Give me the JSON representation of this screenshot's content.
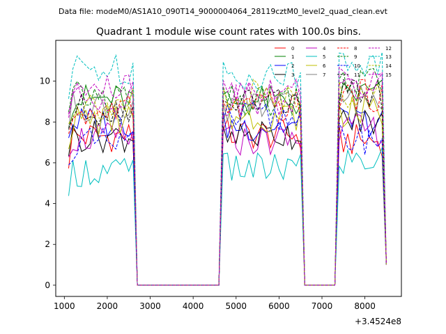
{
  "figure": {
    "suptitle": "Data file: modeM0/AS1A10_090T14_9000004064_28119cztM0_level2_quad_clean.evt"
  },
  "chart_data": {
    "type": "line",
    "title": "Quadrant 1 module wise count rates with 100.0s bins.",
    "xlabel": "",
    "ylabel": "",
    "x_offset_label": "+3.4524e8",
    "xlim": [
      800,
      8850
    ],
    "ylim": [
      -0.55,
      12.0
    ],
    "xticks": [
      1000,
      2000,
      3000,
      4000,
      5000,
      6000,
      7000,
      8000
    ],
    "xtick_labels": [
      "1000",
      "2000",
      "3000",
      "4000",
      "5000",
      "6000",
      "7000",
      "8000"
    ],
    "yticks": [
      0,
      2,
      4,
      6,
      8,
      10
    ],
    "ytick_labels": [
      "0",
      "2",
      "4",
      "6",
      "8",
      "10"
    ],
    "grid": false,
    "legend_position": "top-right",
    "gaps": [
      [
        2600,
        4700
      ],
      [
        6500,
        7400
      ]
    ],
    "segments": [
      [
        1100,
        2600
      ],
      [
        4700,
        6500
      ],
      [
        7400,
        8500
      ]
    ],
    "bin_width": 100,
    "series": [
      {
        "name": "0",
        "color": "#ff0000",
        "style": "solid",
        "levels": [
          7.3,
          7.4,
          7.1
        ],
        "amp": 0.8
      },
      {
        "name": "1",
        "color": "#008000",
        "style": "solid",
        "levels": [
          9.1,
          9.0,
          9.4
        ],
        "amp": 0.8
      },
      {
        "name": "2",
        "color": "#0000ff",
        "style": "solid",
        "levels": [
          8.0,
          7.8,
          8.0
        ],
        "amp": 0.8
      },
      {
        "name": "3",
        "color": "#000000",
        "style": "solid",
        "levels": [
          7.3,
          7.4,
          8.0
        ],
        "amp": 0.8
      },
      {
        "name": "4",
        "color": "#bf00bf",
        "style": "solid",
        "levels": [
          7.2,
          7.1,
          7.6
        ],
        "amp": 0.8
      },
      {
        "name": "5",
        "color": "#00bfbf",
        "style": "solid",
        "levels": [
          5.6,
          5.7,
          6.1
        ],
        "amp": 0.8
      },
      {
        "name": "6",
        "color": "#bfbf00",
        "style": "solid",
        "levels": [
          8.1,
          8.3,
          8.5
        ],
        "amp": 0.8
      },
      {
        "name": "7",
        "color": "#808080",
        "style": "solid",
        "levels": [
          8.8,
          8.8,
          9.1
        ],
        "amp": 0.8
      },
      {
        "name": "8",
        "color": "#ff0000",
        "style": "dashed",
        "levels": [
          8.5,
          8.7,
          9.3
        ],
        "amp": 0.8
      },
      {
        "name": "9",
        "color": "#008000",
        "style": "dashed",
        "levels": [
          9.2,
          9.0,
          9.9
        ],
        "amp": 0.8
      },
      {
        "name": "10",
        "color": "#0000ff",
        "style": "dashed",
        "levels": [
          6.9,
          8.2,
          7.2
        ],
        "amp": 0.8
      },
      {
        "name": "11",
        "color": "#000000",
        "style": "dashed",
        "levels": [
          8.6,
          9.0,
          9.3
        ],
        "amp": 0.8
      },
      {
        "name": "12",
        "color": "#bf00bf",
        "style": "dashed",
        "levels": [
          9.2,
          9.1,
          9.6
        ],
        "amp": 0.8
      },
      {
        "name": "13",
        "color": "#00bfbf",
        "style": "dashed",
        "levels": [
          10.6,
          10.3,
          10.9
        ],
        "amp": 0.8
      },
      {
        "name": "14",
        "color": "#bfbf00",
        "style": "dashed",
        "levels": [
          8.9,
          9.3,
          9.4
        ],
        "amp": 0.8
      },
      {
        "name": "15",
        "color": "#bf00bf",
        "style": "dashed",
        "levels": [
          9.6,
          9.7,
          10.0
        ],
        "amp": 0.8
      }
    ]
  }
}
